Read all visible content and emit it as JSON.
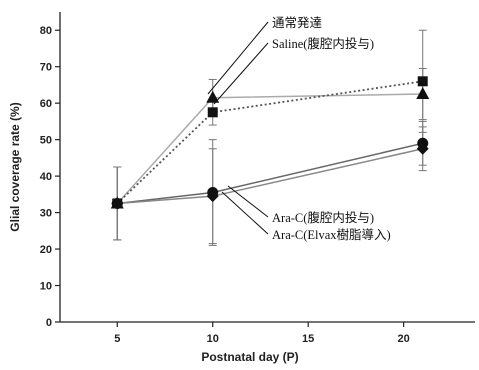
{
  "chart_data": {
    "type": "line",
    "xlabel": "Postnatal day (P)",
    "ylabel": "Glial coverage rate (%)",
    "xlim": [
      2,
      24
    ],
    "ylim": [
      0,
      85
    ],
    "x_ticks": [
      5,
      10,
      15,
      20
    ],
    "y_ticks": [
      0,
      10,
      20,
      30,
      40,
      50,
      60,
      70,
      80
    ],
    "grid": false,
    "x": [
      5,
      10,
      21
    ],
    "series": [
      {
        "name": "通常発達",
        "marker": "triangle",
        "line": "solid",
        "color": "#aaaaaa",
        "values": [
          32.5,
          61.5,
          62.5
        ],
        "err": [
          10,
          5,
          7
        ]
      },
      {
        "name": "Saline(腹腔内投与)",
        "marker": "square",
        "line": "dotted",
        "color": "#555555",
        "values": [
          32.5,
          57.5,
          66
        ],
        "err": [
          10,
          3.5,
          14
        ]
      },
      {
        "name": "Ara-C(腹腔内投与)",
        "marker": "circle",
        "line": "solid",
        "color": "#666666",
        "values": [
          32.5,
          35.5,
          49
        ],
        "err": [
          10,
          14.5,
          6
        ]
      },
      {
        "name": "Ara-C(Elvax樹脂導入)",
        "marker": "diamond",
        "line": "solid",
        "color": "#888888",
        "values": [
          32.5,
          34.5,
          47.5
        ],
        "err": [
          10,
          13,
          6
        ]
      }
    ],
    "annotations": [
      "通常発達",
      "Saline(腹腔内投与)",
      "Ara-C(腹腔内投与)",
      "Ara-C(Elvax樹脂導入)"
    ]
  }
}
